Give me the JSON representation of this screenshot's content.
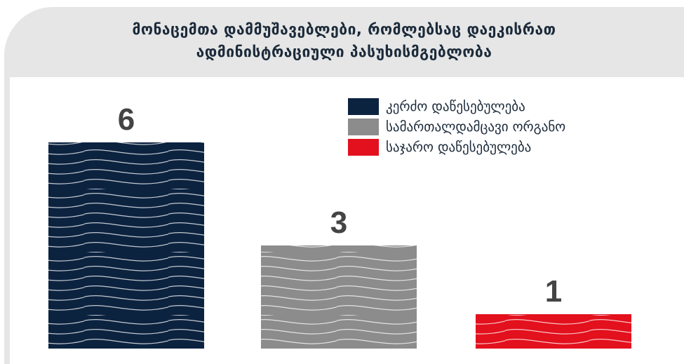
{
  "title_lines": [
    "მონაცემთა დამმუშავებლები, რომლებსაც დაეკისრათ",
    "ადმინისტრაციული პასუხისმგებლობა"
  ],
  "chart_data": {
    "type": "bar",
    "title": "მონაცემთა დამმუშავებლები, რომლებსაც დაეკისრათ ადმინისტრაციული პასუხისმგებლობა",
    "categories": [
      "კერძო დაწესებულება",
      "სამართალდამცავი ორგანო",
      "საჯარო დაწესებულება"
    ],
    "values": [
      6,
      3,
      1
    ],
    "colors": [
      "#0c2340",
      "#8c8c8c",
      "#e3101d"
    ],
    "ylim": [
      0,
      6
    ],
    "legend": "top-right",
    "grid": false,
    "xlabel": "",
    "ylabel": ""
  },
  "legend": [
    {
      "label": "კერძო დაწესებულება",
      "color": "#0c2340"
    },
    {
      "label": "სამართალდამცავი ორგანო",
      "color": "#8c8c8c"
    },
    {
      "label": "საჯარო დაწესებულება",
      "color": "#e3101d"
    }
  ]
}
